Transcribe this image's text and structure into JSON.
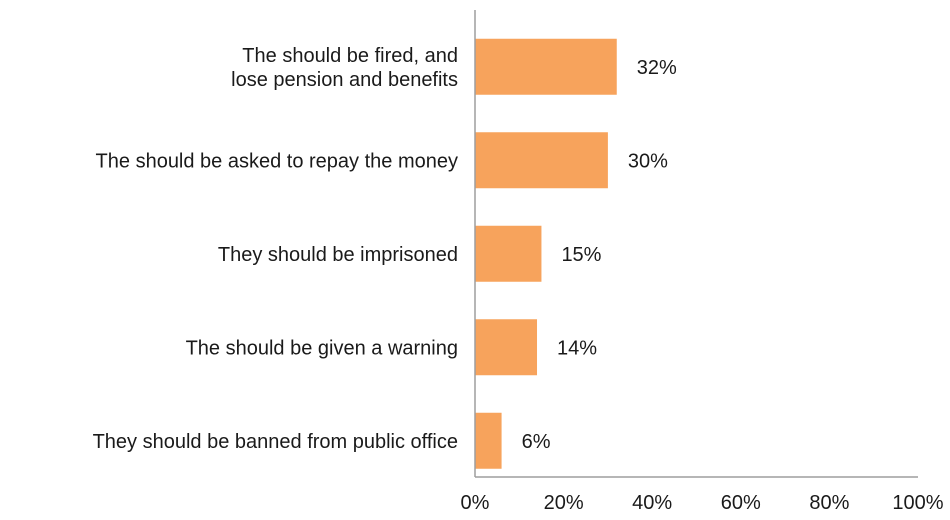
{
  "chart_data": {
    "type": "bar",
    "orientation": "horizontal",
    "categories": [
      [
        "The should be fired, and",
        "lose pension and benefits"
      ],
      [
        "The should be asked to repay the money"
      ],
      [
        "They should be imprisoned"
      ],
      [
        "The should be given a warning"
      ],
      [
        "They should be banned from public office"
      ]
    ],
    "values": [
      32,
      30,
      15,
      14,
      6
    ],
    "value_labels": [
      "32%",
      "30%",
      "15%",
      "14%",
      "6%"
    ],
    "xticks": [
      "0%",
      "20%",
      "40%",
      "60%",
      "80%",
      "100%"
    ],
    "xlim": [
      0,
      100
    ],
    "bar_color": "#f7a35c",
    "axis_color": "#9e9e9e",
    "text_color": "#1a1a1a",
    "grid": false,
    "legend": "none"
  }
}
